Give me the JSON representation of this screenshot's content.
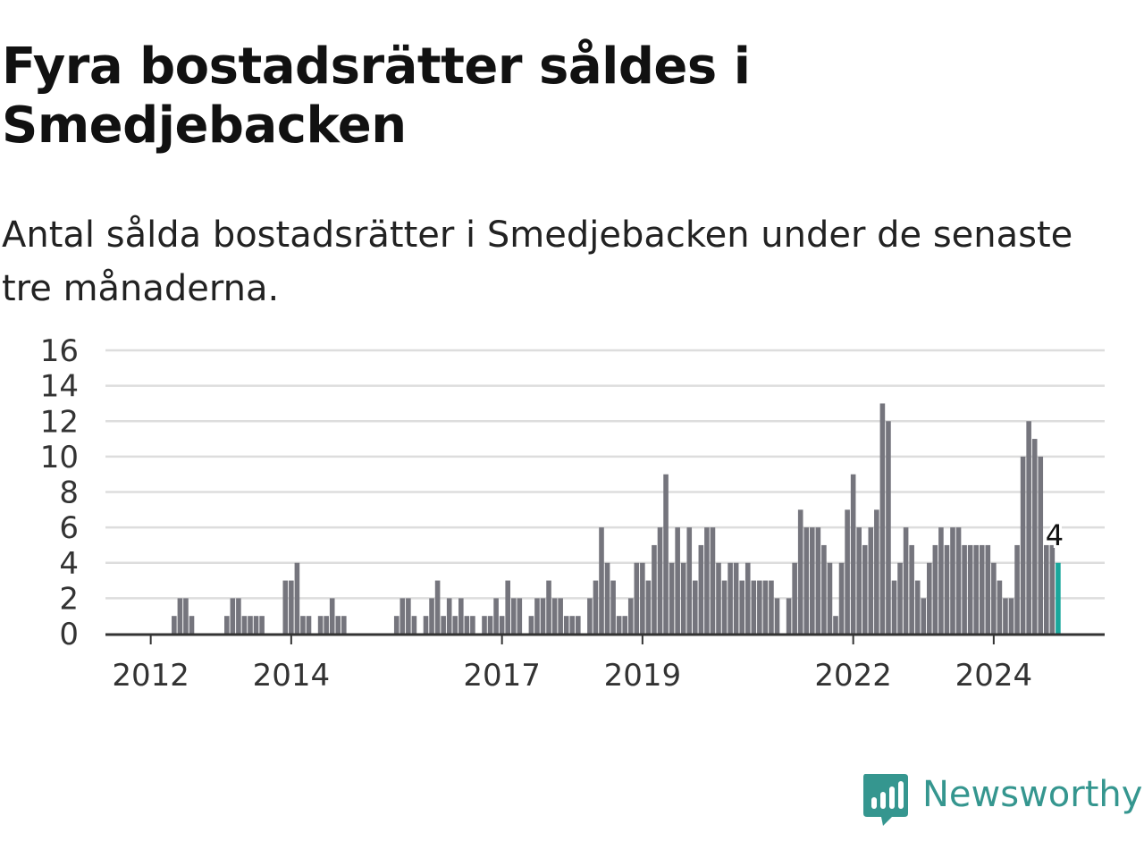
{
  "title": "Fyra bostadsrätter såldes i Smedjebacken",
  "subtitle": "Antal sålda bostadsrätter i Smedjebacken under de senaste tre månaderna.",
  "brand": "Newsworthy",
  "colors": {
    "bar": "#75757d",
    "highlight": "#1aa79c",
    "grid": "#dddddd",
    "axis": "#333333",
    "brand": "#35968f"
  },
  "chart_data": {
    "type": "bar",
    "start_month": "2011-06",
    "x_tick_labels": [
      "2012",
      "2014",
      "2017",
      "2019",
      "2022",
      "2024"
    ],
    "x_tick_months": [
      "2012-01",
      "2014-01",
      "2017-01",
      "2019-01",
      "2022-01",
      "2024-01"
    ],
    "y_ticks": [
      0,
      2,
      4,
      6,
      8,
      10,
      12,
      14,
      16
    ],
    "ylim": [
      0,
      16
    ],
    "grid": true,
    "highlight_index": 162,
    "highlight_label": "4",
    "values": [
      0,
      0,
      0,
      0,
      0,
      0,
      0,
      0,
      0,
      0,
      0,
      1,
      2,
      2,
      1,
      0,
      0,
      0,
      0,
      0,
      1,
      2,
      2,
      1,
      1,
      1,
      1,
      0,
      0,
      0,
      3,
      3,
      4,
      1,
      1,
      0,
      1,
      1,
      2,
      1,
      1,
      0,
      0,
      0,
      0,
      0,
      0,
      0,
      0,
      1,
      2,
      2,
      1,
      0,
      1,
      2,
      3,
      1,
      2,
      1,
      2,
      1,
      1,
      0,
      1,
      1,
      2,
      1,
      3,
      2,
      2,
      0,
      1,
      2,
      2,
      3,
      2,
      2,
      1,
      1,
      1,
      0,
      2,
      3,
      6,
      4,
      3,
      1,
      1,
      2,
      4,
      4,
      3,
      5,
      6,
      9,
      4,
      6,
      4,
      6,
      3,
      5,
      6,
      6,
      4,
      3,
      4,
      4,
      3,
      4,
      3,
      3,
      3,
      3,
      2,
      0,
      2,
      4,
      7,
      6,
      6,
      6,
      5,
      4,
      1,
      4,
      7,
      9,
      6,
      5,
      6,
      7,
      13,
      12,
      3,
      4,
      6,
      5,
      3,
      2,
      4,
      5,
      6,
      5,
      6,
      6,
      5,
      5,
      5,
      5,
      5,
      4,
      3,
      2,
      2,
      5,
      10,
      12,
      11,
      10,
      5,
      5,
      4
    ]
  }
}
